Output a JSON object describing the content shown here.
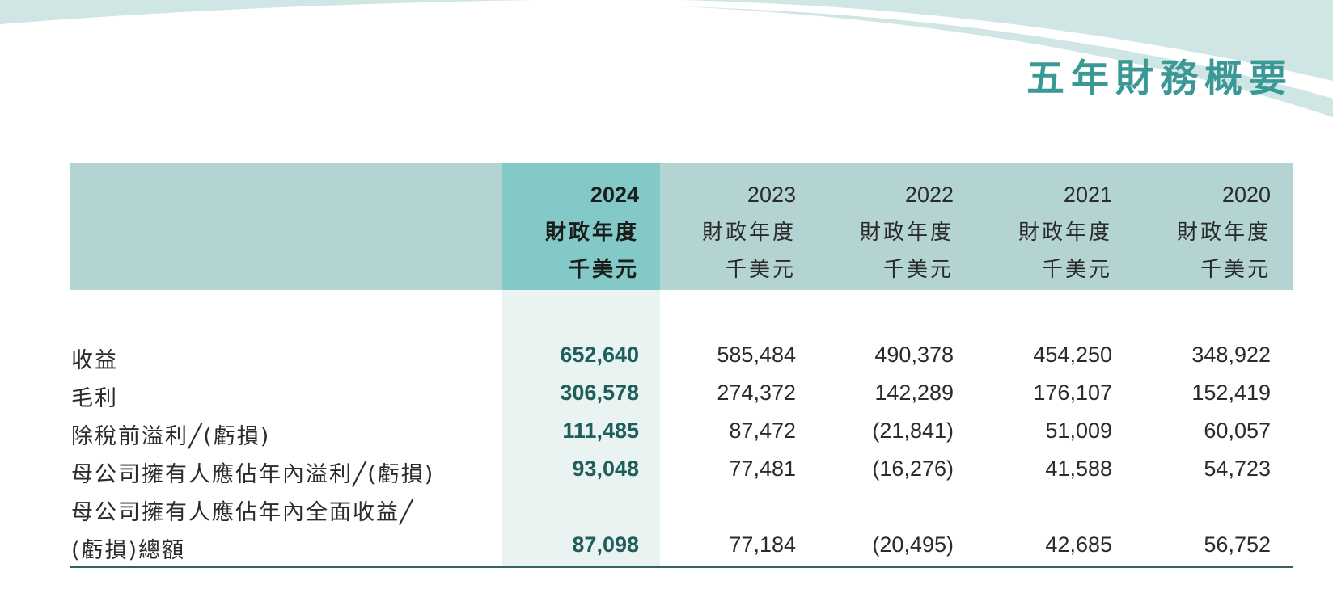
{
  "page": {
    "title": "五年財務概要",
    "colors": {
      "accent": "#3a9896",
      "header_band": "#b3d4d2",
      "highlight_header": "#82c9c7",
      "highlight_column": "#e9f4f2",
      "highlight_value": "#1f5e5c"
    }
  },
  "table": {
    "columns": [
      {
        "year": "2024",
        "period": "財政年度",
        "unit": "千美元"
      },
      {
        "year": "2023",
        "period": "財政年度",
        "unit": "千美元"
      },
      {
        "year": "2022",
        "period": "財政年度",
        "unit": "千美元"
      },
      {
        "year": "2021",
        "period": "財政年度",
        "unit": "千美元"
      },
      {
        "year": "2020",
        "period": "財政年度",
        "unit": "千美元"
      }
    ],
    "rows": [
      {
        "label": "收益",
        "values": [
          "652,640",
          "585,484",
          "490,378",
          "454,250",
          "348,922"
        ]
      },
      {
        "label": "毛利",
        "values": [
          "306,578",
          "274,372",
          "142,289",
          "176,107",
          "152,419"
        ]
      },
      {
        "label": "除稅前溢利╱(虧損)",
        "values": [
          "111,485",
          "87,472",
          "(21,841)",
          "51,009",
          "60,057"
        ]
      },
      {
        "label": "母公司擁有人應佔年內溢利╱(虧損)",
        "values": [
          "93,048",
          "77,481",
          "(16,276)",
          "41,588",
          "54,723"
        ]
      },
      {
        "label_line1": "母公司擁有人應佔年內全面收益╱",
        "label_line2": "(虧損)總額",
        "values": [
          "87,098",
          "77,184",
          "(20,495)",
          "42,685",
          "56,752"
        ]
      }
    ]
  }
}
